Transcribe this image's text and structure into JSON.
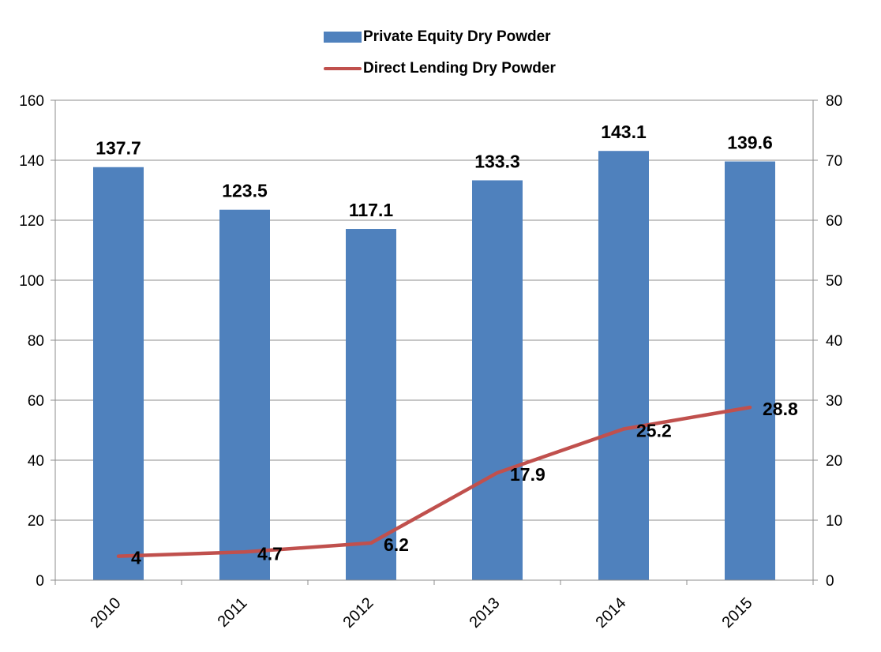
{
  "chart_data": {
    "type": "bar",
    "categories": [
      "2010",
      "2011",
      "2012",
      "2013",
      "2014",
      "2015"
    ],
    "series": [
      {
        "name": "Private Equity Dry Powder",
        "kind": "bar",
        "axis": "left",
        "values": [
          137.7,
          123.5,
          117.1,
          133.3,
          143.1,
          139.6
        ],
        "labels": [
          "137.7",
          "123.5",
          "117.1",
          "133.3",
          "143.1",
          "139.6"
        ],
        "color": "#4F81BD"
      },
      {
        "name": "Direct Lending Dry Powder",
        "kind": "line",
        "axis": "right",
        "values": [
          4,
          4.7,
          6.2,
          17.9,
          25.2,
          28.8
        ],
        "labels": [
          "4",
          "4.7",
          "6.2",
          "17.9",
          "25.2",
          "28.8"
        ],
        "color": "#C0504D"
      }
    ],
    "left_axis": {
      "range": [
        0,
        160
      ],
      "ticks": [
        "0",
        "20",
        "40",
        "60",
        "80",
        "100",
        "120",
        "140",
        "160"
      ]
    },
    "right_axis": {
      "range": [
        0,
        80
      ],
      "ticks": [
        "0",
        "10",
        "20",
        "30",
        "40",
        "50",
        "60",
        "70",
        "80"
      ]
    },
    "grid": true,
    "legend_position": "top-center",
    "title": "",
    "xlabel": "",
    "ylabel": ""
  }
}
